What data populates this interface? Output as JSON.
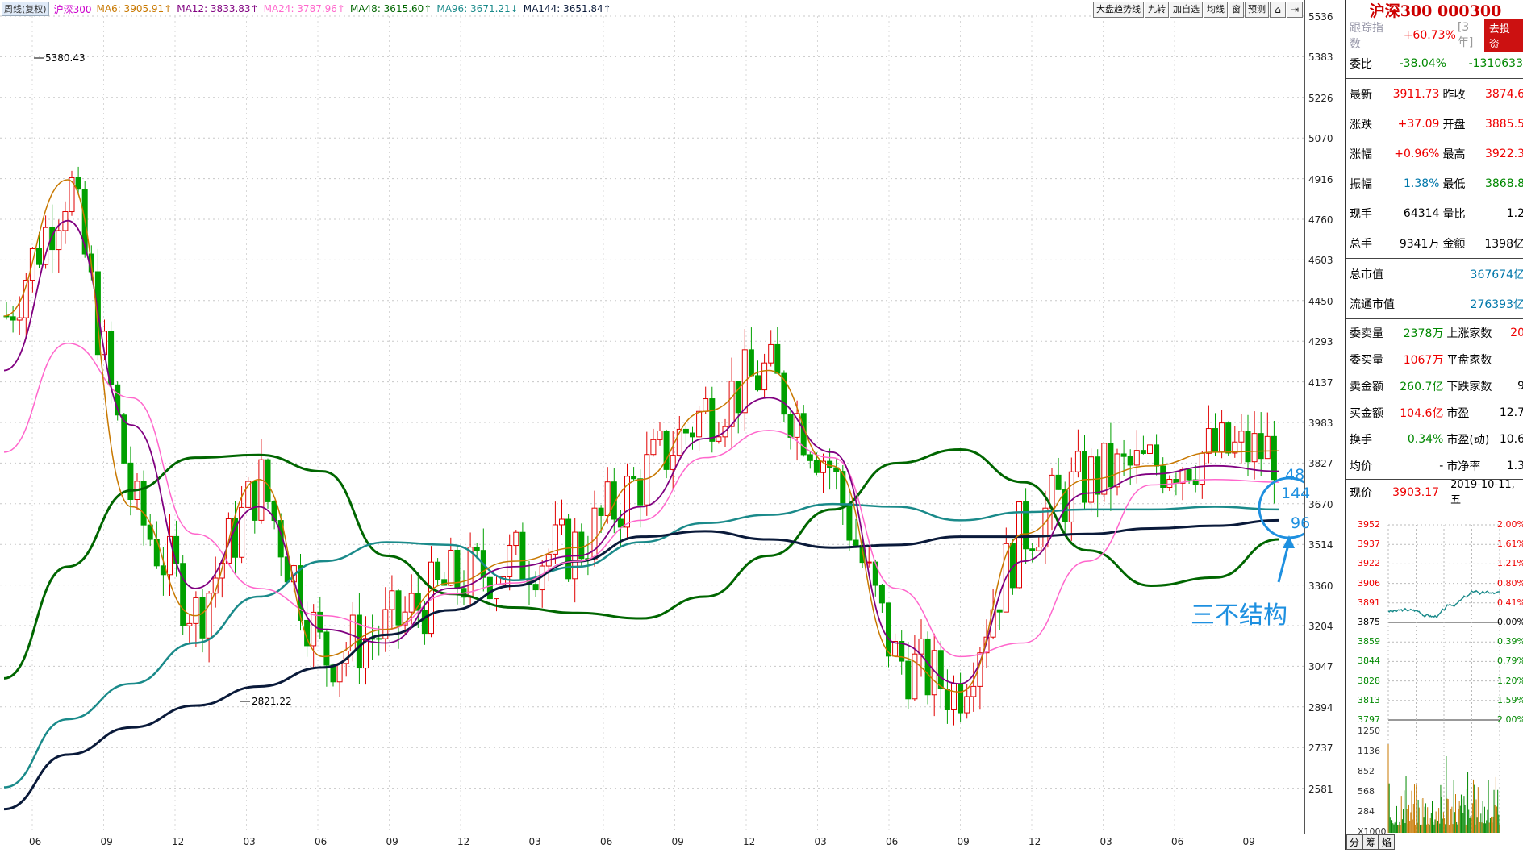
{
  "ma_bar": {
    "period_label": "周线(复权)",
    "symbol": "沪深300",
    "ma6": "MA6: 3905.91↑",
    "ma12": "MA12: 3833.83↑",
    "ma24": "MA24: 3787.96↑",
    "ma48": "MA48: 3615.60↑",
    "ma96": "MA96: 3671.21↓",
    "ma144": "MA144: 3651.84↑"
  },
  "toolbar": {
    "trend_line": "大盘趋势线",
    "nine_turn": "九转",
    "add_watch": "加自选",
    "avg_line": "均线",
    "window": "窗",
    "forecast": "预测"
  },
  "colors": {
    "up": "#e00000",
    "down": "#00a000",
    "ma6": "#c87800",
    "ma12": "#800080",
    "ma24": "#ff66cc",
    "ma48": "#006600",
    "ma96": "#1a8a8a",
    "ma144": "#0a1a3a",
    "annotation": "#1e90e0"
  },
  "price_axis": [
    "5536",
    "5383",
    "5226",
    "5070",
    "4916",
    "4760",
    "4603",
    "4450",
    "4293",
    "4137",
    "3983",
    "3827",
    "3670",
    "3514",
    "3360",
    "3204",
    "3047",
    "2894",
    "2737",
    "2581"
  ],
  "time_axis": [
    "06",
    "09",
    "12",
    "03",
    "06",
    "09",
    "12",
    "03",
    "06",
    "09",
    "12",
    "03",
    "06",
    "09",
    "12",
    "03",
    "06",
    "09"
  ],
  "chart_labels": {
    "high": "5380.43",
    "low": "2821.22"
  },
  "annotation": {
    "text": "三不结构",
    "n48": "48",
    "n144": "144",
    "n96": "96"
  },
  "chart_data": {
    "type": "line",
    "ylim": [
      2500,
      5560
    ],
    "series": [
      {
        "name": "MA48",
        "values": [
          3070,
          3480,
          3760,
          3880,
          3890,
          3830,
          3520,
          3380,
          3330,
          3310,
          3290,
          3370,
          3520,
          3690,
          3860,
          3910,
          3790,
          3540,
          3410,
          3440,
          3580
        ]
      },
      {
        "name": "MA96",
        "values": [
          2670,
          2920,
          3050,
          3200,
          3370,
          3500,
          3570,
          3560,
          3430,
          3480,
          3570,
          3640,
          3670,
          3710,
          3700,
          3650,
          3680,
          3690,
          3690,
          3700,
          3690
        ]
      },
      {
        "name": "MA144",
        "values": [
          2590,
          2790,
          2890,
          2970,
          3040,
          3110,
          3230,
          3320,
          3410,
          3500,
          3590,
          3610,
          3580,
          3550,
          3560,
          3590,
          3590,
          3600,
          3620,
          3630,
          3650
        ]
      },
      {
        "name": "MA24",
        "values": [
          3900,
          4300,
          4100,
          3600,
          3400,
          3300,
          3250,
          3380,
          3420,
          3500,
          3650,
          3880,
          3980,
          3880,
          3400,
          3150,
          3200,
          3500,
          3780,
          3800,
          3790
        ]
      },
      {
        "name": "MA12",
        "values": [
          4200,
          4750,
          4000,
          3400,
          3700,
          3250,
          3200,
          3400,
          3480,
          3520,
          3700,
          3950,
          4100,
          3900,
          3200,
          3050,
          3500,
          3750,
          3820,
          3850,
          3830
        ]
      },
      {
        "name": "MA6",
        "values": [
          4400,
          4900,
          3700,
          3300,
          3800,
          3150,
          3250,
          3420,
          3500,
          3550,
          3800,
          4050,
          4200,
          3850,
          3150,
          3020,
          3600,
          3800,
          3850,
          3900,
          3905
        ]
      }
    ]
  },
  "right_panel": {
    "title": "沪深300 000300",
    "track_label": "跟踪指数",
    "track_value": "+60.73%",
    "track_period": "[3年]",
    "track_button": "去投资",
    "weibi_label": "委比",
    "weibi_pct": "-38.04%",
    "weibi_val": "-1310633",
    "rows": [
      {
        "k": "最新",
        "v": "3911.73",
        "k2": "昨收",
        "v2": "3874.6"
      },
      {
        "k": "涨跌",
        "v": "+37.09",
        "k2": "开盘",
        "v2": "3885.5"
      },
      {
        "k": "涨幅",
        "v": "+0.96%",
        "k2": "最高",
        "v2": "3922.3"
      },
      {
        "k": "振幅",
        "v": "1.38%",
        "k2": "最低",
        "v2": "3868.8"
      },
      {
        "k": "现手",
        "v": "64314",
        "k2": "量比",
        "v2": "1.2"
      },
      {
        "k": "总手",
        "v": "9341万",
        "k2": "金额",
        "v2": "1398亿"
      }
    ],
    "mcap_label": "总市值",
    "mcap_value": "367674亿",
    "float_label": "流通市值",
    "float_value": "276393亿",
    "rows2": [
      {
        "k": "委卖量",
        "v": "2378万",
        "k2": "上涨家数",
        "v2": "20"
      },
      {
        "k": "委买量",
        "v": "1067万",
        "k2": "平盘家数",
        "v2": ""
      },
      {
        "k": "卖金额",
        "v": "260.7亿",
        "k2": "下跌家数",
        "v2": "9"
      },
      {
        "k": "买金额",
        "v": "104.6亿",
        "k2": "市盈",
        "v2": "12.7"
      },
      {
        "k": "换手",
        "v": "0.34%",
        "k2": "市盈(动)",
        "v2": "10.6"
      },
      {
        "k": "均价",
        "v": "-",
        "k2": "市净率",
        "v2": "1.3"
      }
    ],
    "now_label": "现价",
    "now_value": "3903.17",
    "now_date": "2019-10-11,五",
    "mini_prices": [
      "3952",
      "3937",
      "3922",
      "3906",
      "3891",
      "3875",
      "3859",
      "3844",
      "3828",
      "3813",
      "3797"
    ],
    "mini_pcts": [
      "2.00%",
      "1.61%",
      "1.21%",
      "0.80%",
      "0.41%",
      "0.00%",
      "0.39%",
      "0.79%",
      "1.20%",
      "1.59%",
      "2.00%"
    ],
    "vol_ticks": [
      "1250",
      "1136",
      "852",
      "568",
      "284",
      "X1000"
    ],
    "tabs": [
      "分",
      "筹",
      "焰"
    ]
  }
}
